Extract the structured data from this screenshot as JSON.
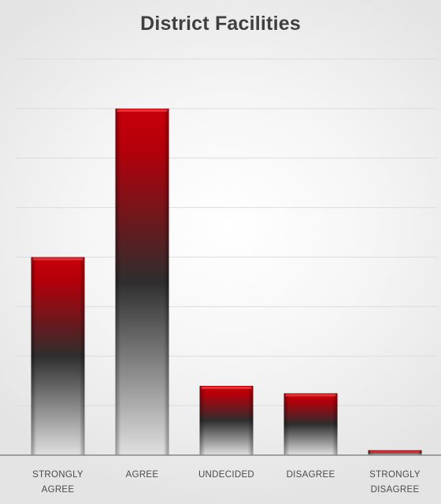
{
  "chart_data": {
    "type": "bar",
    "title": "District Facilities",
    "categories": [
      "STRONGLY AGREE",
      "AGREE",
      "UNDECIDED",
      "DISAGREE",
      "STRONGLY DISAGREE"
    ],
    "category_lines": [
      [
        "STRONGLY",
        "AGREE"
      ],
      [
        "AGREE"
      ],
      [
        "UNDECIDED"
      ],
      [
        "DISAGREE"
      ],
      [
        "STRONGLY",
        "DISAGREE"
      ]
    ],
    "values": [
      40,
      70,
      14,
      12.5,
      1
    ],
    "ylim": [
      0,
      80
    ],
    "grid": true,
    "xlabel": "",
    "ylabel": "",
    "colors": {
      "bar_top": "#c8000a",
      "bar_mid": "#2e2e2e",
      "bar_bottom": "#e0e0e0",
      "grid": "#dcdcdc",
      "axis": "#888888"
    }
  }
}
